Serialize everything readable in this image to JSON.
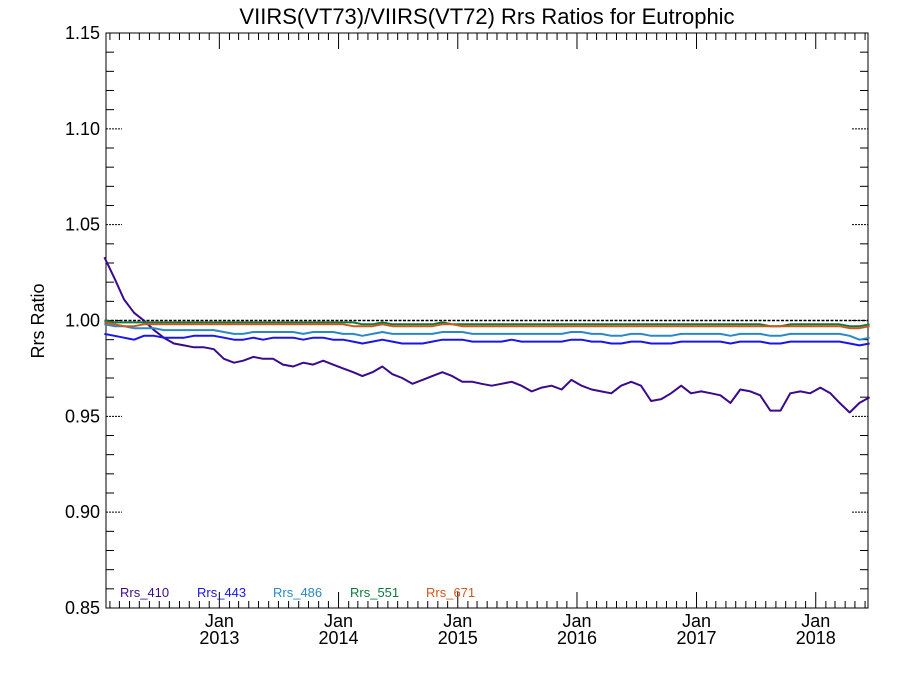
{
  "chart_data": {
    "type": "line",
    "title": "VIIRS(VT73)/VIIRS(VT72)  Rrs Ratios for Eutrophic",
    "xlabel": "",
    "ylabel": "Rrs Ratio",
    "xlim": [
      "2012-01-20",
      "2018-06-10"
    ],
    "ylim": [
      0.85,
      1.15
    ],
    "yticks": [
      {
        "value": 0.85,
        "label": "0.85"
      },
      {
        "value": 0.9,
        "label": "0.90"
      },
      {
        "value": 0.95,
        "label": "0.95"
      },
      {
        "value": 1.0,
        "label": "1.00"
      },
      {
        "value": 1.05,
        "label": "1.05"
      },
      {
        "value": 1.1,
        "label": "1.10"
      },
      {
        "value": 1.15,
        "label": "1.15"
      }
    ],
    "xticks": [
      {
        "value": "2013-01-01",
        "month": "Jan",
        "year": "2013"
      },
      {
        "value": "2014-01-01",
        "month": "Jan",
        "year": "2014"
      },
      {
        "value": "2015-01-01",
        "month": "Jan",
        "year": "2015"
      },
      {
        "value": "2016-01-01",
        "month": "Jan",
        "year": "2016"
      },
      {
        "value": "2017-01-01",
        "month": "Jan",
        "year": "2017"
      },
      {
        "value": "2018-01-01",
        "month": "Jan",
        "year": "2018"
      }
    ],
    "reference_line": 1.0,
    "legend_position": "bottom-left",
    "x": [
      "2012-01",
      "2012-02",
      "2012-03",
      "2012-04",
      "2012-05",
      "2012-06",
      "2012-07",
      "2012-08",
      "2012-09",
      "2012-10",
      "2012-11",
      "2012-12",
      "2013-01",
      "2013-02",
      "2013-03",
      "2013-04",
      "2013-05",
      "2013-06",
      "2013-07",
      "2013-08",
      "2013-09",
      "2013-10",
      "2013-11",
      "2013-12",
      "2014-01",
      "2014-02",
      "2014-03",
      "2014-04",
      "2014-05",
      "2014-06",
      "2014-07",
      "2014-08",
      "2014-09",
      "2014-10",
      "2014-11",
      "2014-12",
      "2015-01",
      "2015-02",
      "2015-03",
      "2015-04",
      "2015-05",
      "2015-06",
      "2015-07",
      "2015-08",
      "2015-09",
      "2015-10",
      "2015-11",
      "2015-12",
      "2016-01",
      "2016-02",
      "2016-03",
      "2016-04",
      "2016-05",
      "2016-06",
      "2016-07",
      "2016-08",
      "2016-09",
      "2016-10",
      "2016-11",
      "2016-12",
      "2017-01",
      "2017-02",
      "2017-03",
      "2017-04",
      "2017-05",
      "2017-06",
      "2017-07",
      "2017-08",
      "2017-09",
      "2017-10",
      "2017-11",
      "2017-12",
      "2018-01",
      "2018-02",
      "2018-03",
      "2018-04",
      "2018-05",
      "2018-06"
    ],
    "series": [
      {
        "name": "Rrs_410",
        "color": "#3a0a8c",
        "values": [
          1.033,
          1.022,
          1.011,
          1.004,
          1.0,
          0.995,
          0.991,
          0.988,
          0.987,
          0.986,
          0.986,
          0.985,
          0.98,
          0.978,
          0.979,
          0.981,
          0.98,
          0.98,
          0.977,
          0.976,
          0.978,
          0.977,
          0.979,
          0.977,
          0.975,
          0.973,
          0.971,
          0.973,
          0.976,
          0.972,
          0.97,
          0.967,
          0.969,
          0.971,
          0.973,
          0.971,
          0.968,
          0.968,
          0.967,
          0.966,
          0.967,
          0.968,
          0.966,
          0.963,
          0.965,
          0.966,
          0.964,
          0.969,
          0.966,
          0.964,
          0.963,
          0.962,
          0.966,
          0.968,
          0.966,
          0.958,
          0.959,
          0.962,
          0.966,
          0.962,
          0.963,
          0.962,
          0.961,
          0.957,
          0.964,
          0.963,
          0.961,
          0.953,
          0.953,
          0.962,
          0.963,
          0.962,
          0.965,
          0.962,
          0.957,
          0.952,
          0.957,
          0.96
        ]
      },
      {
        "name": "Rrs_443",
        "color": "#1a16e6",
        "values": [
          0.993,
          0.992,
          0.991,
          0.99,
          0.992,
          0.992,
          0.991,
          0.991,
          0.991,
          0.992,
          0.992,
          0.992,
          0.991,
          0.99,
          0.99,
          0.991,
          0.99,
          0.991,
          0.991,
          0.991,
          0.99,
          0.991,
          0.991,
          0.99,
          0.99,
          0.989,
          0.988,
          0.989,
          0.99,
          0.989,
          0.988,
          0.988,
          0.988,
          0.989,
          0.99,
          0.99,
          0.99,
          0.989,
          0.989,
          0.989,
          0.989,
          0.99,
          0.989,
          0.989,
          0.989,
          0.989,
          0.989,
          0.99,
          0.99,
          0.989,
          0.989,
          0.988,
          0.988,
          0.989,
          0.989,
          0.988,
          0.988,
          0.988,
          0.989,
          0.989,
          0.989,
          0.989,
          0.989,
          0.988,
          0.989,
          0.989,
          0.989,
          0.988,
          0.988,
          0.989,
          0.989,
          0.989,
          0.989,
          0.989,
          0.989,
          0.988,
          0.987,
          0.988
        ]
      },
      {
        "name": "Rrs_486",
        "color": "#2a88c8",
        "values": [
          0.998,
          0.997,
          0.997,
          0.996,
          0.996,
          0.996,
          0.995,
          0.995,
          0.995,
          0.995,
          0.995,
          0.995,
          0.994,
          0.993,
          0.993,
          0.994,
          0.994,
          0.994,
          0.994,
          0.994,
          0.993,
          0.994,
          0.994,
          0.994,
          0.993,
          0.993,
          0.992,
          0.993,
          0.994,
          0.993,
          0.993,
          0.993,
          0.993,
          0.993,
          0.994,
          0.994,
          0.994,
          0.993,
          0.993,
          0.993,
          0.993,
          0.993,
          0.993,
          0.993,
          0.993,
          0.993,
          0.993,
          0.994,
          0.994,
          0.993,
          0.993,
          0.992,
          0.992,
          0.993,
          0.993,
          0.992,
          0.992,
          0.992,
          0.993,
          0.993,
          0.993,
          0.993,
          0.993,
          0.992,
          0.993,
          0.993,
          0.993,
          0.992,
          0.992,
          0.993,
          0.993,
          0.993,
          0.993,
          0.993,
          0.993,
          0.992,
          0.99,
          0.991
        ]
      },
      {
        "name": "Rrs_551",
        "color": "#0c7a3e",
        "values": [
          1.0,
          0.999,
          0.999,
          0.999,
          0.999,
          0.999,
          0.999,
          0.999,
          0.999,
          0.999,
          0.999,
          0.999,
          0.999,
          0.999,
          0.999,
          0.999,
          0.999,
          0.999,
          0.999,
          0.999,
          0.999,
          0.999,
          0.999,
          0.999,
          0.999,
          0.999,
          0.998,
          0.998,
          0.999,
          0.998,
          0.998,
          0.998,
          0.998,
          0.998,
          0.999,
          0.998,
          0.998,
          0.998,
          0.998,
          0.998,
          0.998,
          0.998,
          0.998,
          0.998,
          0.998,
          0.998,
          0.998,
          0.998,
          0.998,
          0.998,
          0.998,
          0.998,
          0.998,
          0.998,
          0.998,
          0.998,
          0.998,
          0.998,
          0.998,
          0.998,
          0.998,
          0.998,
          0.998,
          0.998,
          0.998,
          0.998,
          0.998,
          0.997,
          0.997,
          0.998,
          0.998,
          0.998,
          0.998,
          0.998,
          0.998,
          0.997,
          0.997,
          0.998
        ]
      },
      {
        "name": "Rrs_671",
        "color": "#d0581c",
        "values": [
          0.999,
          0.998,
          0.997,
          0.997,
          0.998,
          0.998,
          0.998,
          0.998,
          0.998,
          0.998,
          0.998,
          0.998,
          0.998,
          0.998,
          0.998,
          0.998,
          0.998,
          0.998,
          0.998,
          0.998,
          0.998,
          0.998,
          0.998,
          0.998,
          0.998,
          0.997,
          0.997,
          0.997,
          0.998,
          0.997,
          0.997,
          0.997,
          0.997,
          0.997,
          0.998,
          0.998,
          0.997,
          0.997,
          0.997,
          0.997,
          0.997,
          0.997,
          0.997,
          0.997,
          0.997,
          0.997,
          0.997,
          0.997,
          0.997,
          0.997,
          0.997,
          0.997,
          0.997,
          0.997,
          0.997,
          0.997,
          0.997,
          0.997,
          0.997,
          0.997,
          0.997,
          0.997,
          0.997,
          0.997,
          0.997,
          0.997,
          0.997,
          0.997,
          0.997,
          0.997,
          0.997,
          0.997,
          0.997,
          0.997,
          0.997,
          0.996,
          0.996,
          0.997
        ]
      }
    ]
  }
}
